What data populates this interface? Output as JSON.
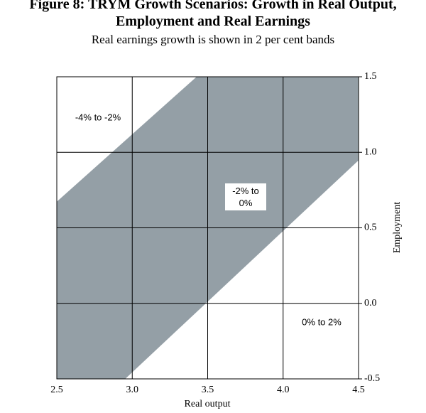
{
  "chart_data": {
    "type": "band",
    "title": "Figure 8: TRYM Growth Scenarios: Growth in Real Output, Employment and Real Earnings",
    "subtitle": "Real earnings growth is shown in 2 per cent bands",
    "x_label": "Real output",
    "y_label": "Employment",
    "boundaries": [
      {
        "x": [
          2.5,
          3.43
        ],
        "y": [
          0.67,
          1.5
        ]
      },
      {
        "x": [
          2.95,
          4.5
        ],
        "y": [
          -0.5,
          0.95
        ]
      }
    ],
    "band_labels": [
      "-4% to -2%",
      "-2% to 0%",
      "0% to 2%"
    ],
    "color": "#949fa6",
    "xlim": [
      2.5,
      4.5
    ],
    "xticks": [
      2.5,
      {
        "value": 3,
        "label": "3.0"
      },
      3.5,
      {
        "value": 4,
        "label": "4.0"
      },
      4.5
    ],
    "ylim": [
      -0.5,
      1.5
    ],
    "yticks": [
      -0.5,
      {
        "value": 0,
        "label": "0.0"
      },
      0.5,
      {
        "value": 1,
        "label": "1.0"
      },
      1.5
    ],
    "grid": true
  }
}
